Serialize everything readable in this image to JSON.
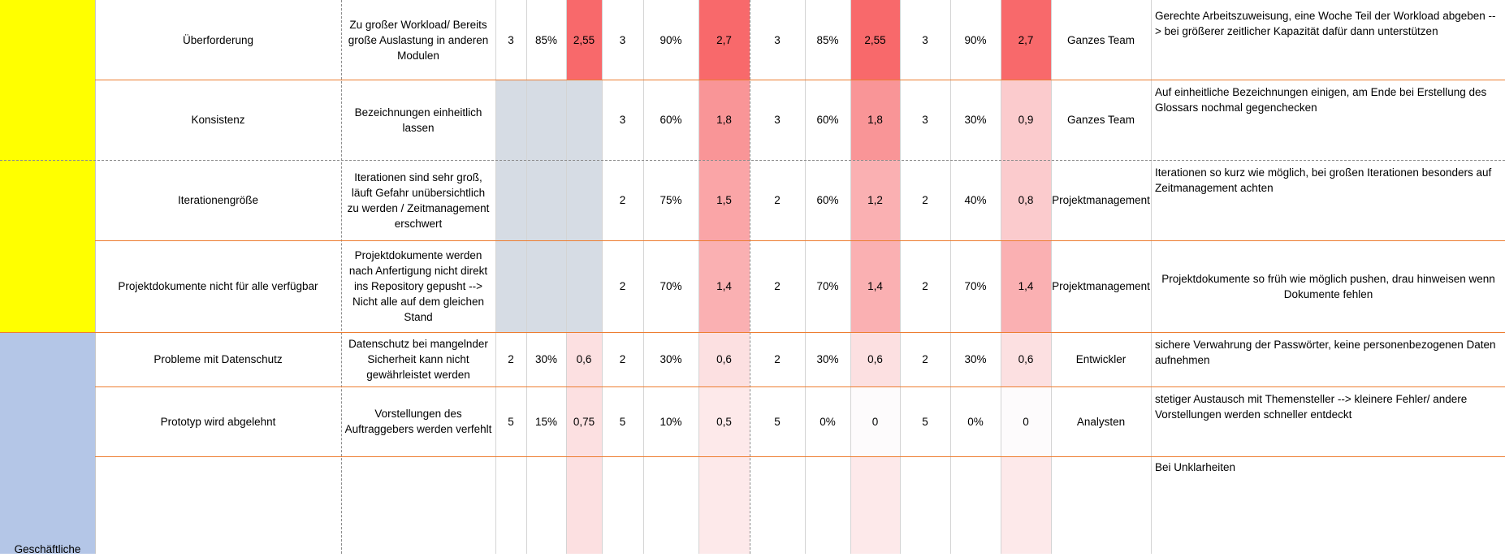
{
  "colors": {
    "category_a": "#ffff00",
    "category_b": "#b4c6e7",
    "not_applicable": "#d6dce4",
    "row_separator": "#ed7d31",
    "risk_very_high": "#f8696b",
    "risk_high": "#f99597",
    "risk_medium_high": "#faa5a7",
    "risk_medium": "#fab0b2",
    "risk_low_medium": "#fbcbcd",
    "risk_low": "#fce0e1",
    "risk_very_low": "#fde9ea",
    "risk_zero": "#fdfbfc"
  },
  "categories": [
    {
      "label": "",
      "color": "#ffff00"
    },
    {
      "label": "Geschäftliche",
      "color": "#b4c6e7"
    }
  ],
  "rows": [
    {
      "risk": "Überforderung",
      "cause": "Zu großer Workload/ Bereits große Auslastung in anderen Modulen",
      "assessments": [
        {
          "impact": "3",
          "probability": "85%",
          "value": "2,55",
          "color": "#f8696b"
        },
        {
          "impact": "3",
          "probability": "90%",
          "value": "2,7",
          "color": "#f8696b"
        },
        {
          "impact": "3",
          "probability": "85%",
          "value": "2,55",
          "color": "#f8696b"
        },
        {
          "impact": "3",
          "probability": "90%",
          "value": "2,7",
          "color": "#f8696b"
        }
      ],
      "responsible": "Ganzes Team",
      "measure": "Gerechte Arbeitszuweisung, eine Woche Teil der Workload abgeben --> bei größerer zeitlicher Kapazität dafür dann unterstützen"
    },
    {
      "risk": "Konsistenz",
      "cause": "Bezeichnungen einheitlich lassen",
      "assessments": [
        {
          "impact": "",
          "probability": "",
          "value": "",
          "color": "#d6dce4"
        },
        {
          "impact": "3",
          "probability": "60%",
          "value": "1,8",
          "color": "#f99597"
        },
        {
          "impact": "3",
          "probability": "60%",
          "value": "1,8",
          "color": "#f99597"
        },
        {
          "impact": "3",
          "probability": "30%",
          "value": "0,9",
          "color": "#fbcbcd"
        }
      ],
      "responsible": "Ganzes Team",
      "measure": "Auf einheitliche Bezeichnungen einigen, am Ende bei Erstellung des Glossars nochmal gegenchecken"
    },
    {
      "risk": "Iterationengröße",
      "cause": "Iterationen sind sehr groß, läuft Gefahr unübersichtlich zu werden / Zeitmanagement erschwert",
      "assessments": [
        {
          "impact": "",
          "probability": "",
          "value": "",
          "color": "#d6dce4"
        },
        {
          "impact": "2",
          "probability": "75%",
          "value": "1,5",
          "color": "#faa5a7"
        },
        {
          "impact": "2",
          "probability": "60%",
          "value": "1,2",
          "color": "#fab0b2"
        },
        {
          "impact": "2",
          "probability": "40%",
          "value": "0,8",
          "color": "#fbcbcd"
        }
      ],
      "responsible": "Projektmanagement",
      "measure": "Iterationen so kurz wie möglich, bei großen Iterationen besonders auf Zeitmanagement achten"
    },
    {
      "risk": "Projektdokumente nicht für alle verfügbar",
      "cause": "Projektdokumente werden nach Anfertigung nicht direkt ins Repository gepusht --> Nicht alle auf dem gleichen Stand",
      "assessments": [
        {
          "impact": "",
          "probability": "",
          "value": "",
          "color": "#d6dce4"
        },
        {
          "impact": "2",
          "probability": "70%",
          "value": "1,4",
          "color": "#fab0b2"
        },
        {
          "impact": "2",
          "probability": "70%",
          "value": "1,4",
          "color": "#fab0b2"
        },
        {
          "impact": "2",
          "probability": "70%",
          "value": "1,4",
          "color": "#fab0b2"
        }
      ],
      "responsible": "Projektmanagement",
      "measure": "Projektdokumente so früh wie möglich pushen, drau hinweisen wenn Dokumente fehlen"
    },
    {
      "risk": "Probleme mit Datenschutz",
      "cause": "Datenschutz bei mangelnder Sicherheit kann nicht gewährleistet werden",
      "assessments": [
        {
          "impact": "2",
          "probability": "30%",
          "value": "0,6",
          "color": "#fce0e1"
        },
        {
          "impact": "2",
          "probability": "30%",
          "value": "0,6",
          "color": "#fce0e1"
        },
        {
          "impact": "2",
          "probability": "30%",
          "value": "0,6",
          "color": "#fce0e1"
        },
        {
          "impact": "2",
          "probability": "30%",
          "value": "0,6",
          "color": "#fce0e1"
        }
      ],
      "responsible": "Entwickler",
      "measure": "sichere Verwahrung der Passwörter, keine personenbezogenen Daten aufnehmen"
    },
    {
      "risk": "Prototyp wird abgelehnt",
      "cause": "Vorstellungen des Auftraggebers werden verfehlt",
      "assessments": [
        {
          "impact": "5",
          "probability": "15%",
          "value": "0,75",
          "color": "#fce0e1"
        },
        {
          "impact": "5",
          "probability": "10%",
          "value": "0,5",
          "color": "#fde9ea"
        },
        {
          "impact": "5",
          "probability": "0%",
          "value": "0",
          "color": "#fdfbfc"
        },
        {
          "impact": "5",
          "probability": "0%",
          "value": "0",
          "color": "#fdfbfc"
        }
      ],
      "responsible": "Analysten",
      "measure": "stetiger Austausch mit Themensteller --> kleinere Fehler/ andere Vorstellungen werden schneller entdeckt"
    },
    {
      "risk": "",
      "cause": "",
      "assessments": [
        {
          "impact": "",
          "probability": "",
          "value": "",
          "color": "#fce0e1"
        },
        {
          "impact": "",
          "probability": "",
          "value": "",
          "color": "#fde9ea"
        },
        {
          "impact": "",
          "probability": "",
          "value": "",
          "color": "#fde9ea"
        },
        {
          "impact": "",
          "probability": "",
          "value": "",
          "color": "#fde9ea"
        }
      ],
      "responsible": "",
      "measure": "Bei Unklarheiten"
    }
  ]
}
